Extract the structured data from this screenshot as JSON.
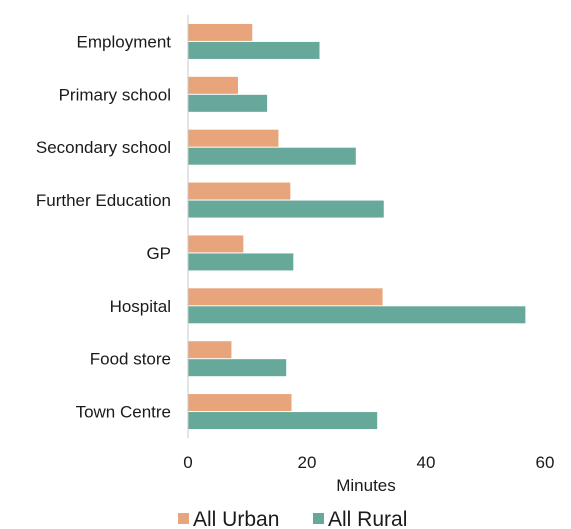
{
  "chart_data": {
    "type": "bar",
    "orientation": "horizontal",
    "categories": [
      "Employment",
      "Primary school",
      "Secondary school",
      "Further Education",
      "GP",
      "Hospital",
      "Food store",
      "Town Centre"
    ],
    "series": [
      {
        "name": "All Urban",
        "color": "#e8a57c",
        "values": [
          10.8,
          8.4,
          15.2,
          17.2,
          9.3,
          32.7,
          7.3,
          17.4
        ]
      },
      {
        "name": "All Rural",
        "color": "#66a899",
        "values": [
          22.1,
          13.3,
          28.2,
          32.9,
          17.7,
          56.7,
          16.5,
          31.8
        ]
      }
    ],
    "xlabel": "Minutes",
    "ylabel": "",
    "xlim": [
      0,
      60
    ],
    "x_ticks": [
      "0",
      "20",
      "40",
      "60"
    ],
    "grid": false,
    "legend_position": "bottom"
  }
}
